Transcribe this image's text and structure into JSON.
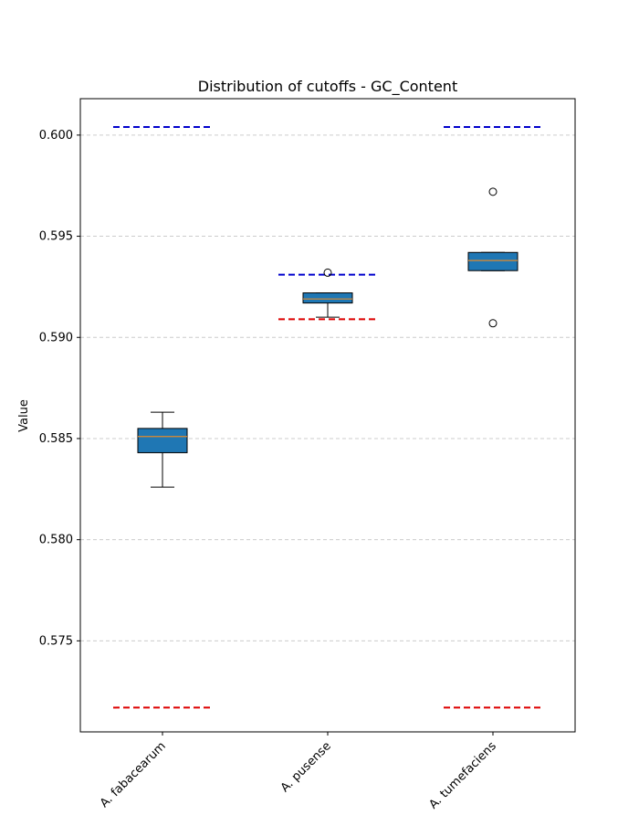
{
  "chart_data": {
    "type": "boxplot",
    "title": "Distribution of cutoffs - GC_Content",
    "xlabel": "",
    "ylabel": "Value",
    "ylim": [
      0.5705,
      0.6018
    ],
    "yticks": [
      0.575,
      0.58,
      0.585,
      0.59,
      0.595,
      0.6
    ],
    "ytick_labels": [
      "0.575",
      "0.580",
      "0.585",
      "0.590",
      "0.595",
      "0.600"
    ],
    "categories": [
      "A. fabacearum",
      "A. pusense",
      "A. tumefaciens"
    ],
    "grid": "y",
    "boxes": [
      {
        "q1": 0.5843,
        "median": 0.5851,
        "q3": 0.5855,
        "whisker_low": 0.5826,
        "whisker_high": 0.5863,
        "outliers": [],
        "upper_cutoff": 0.6004,
        "lower_cutoff": 0.5717
      },
      {
        "q1": 0.5917,
        "median": 0.5919,
        "q3": 0.5922,
        "whisker_low": 0.591,
        "whisker_high": 0.5922,
        "outliers": [
          0.5932
        ],
        "upper_cutoff": 0.5931,
        "lower_cutoff": 0.5909
      },
      {
        "q1": 0.5933,
        "median": 0.5938,
        "q3": 0.5942,
        "whisker_low": 0.5933,
        "whisker_high": 0.5942,
        "outliers": [
          0.5972,
          0.5907
        ],
        "upper_cutoff": 0.6004,
        "lower_cutoff": 0.5717
      }
    ],
    "colors": {
      "box_fill": "#1f77b4",
      "median": "#e08a2c",
      "upper_cutoff": "#0000cc",
      "lower_cutoff": "#dd0000",
      "grid": "#cccccc",
      "axis": "#000000"
    }
  }
}
